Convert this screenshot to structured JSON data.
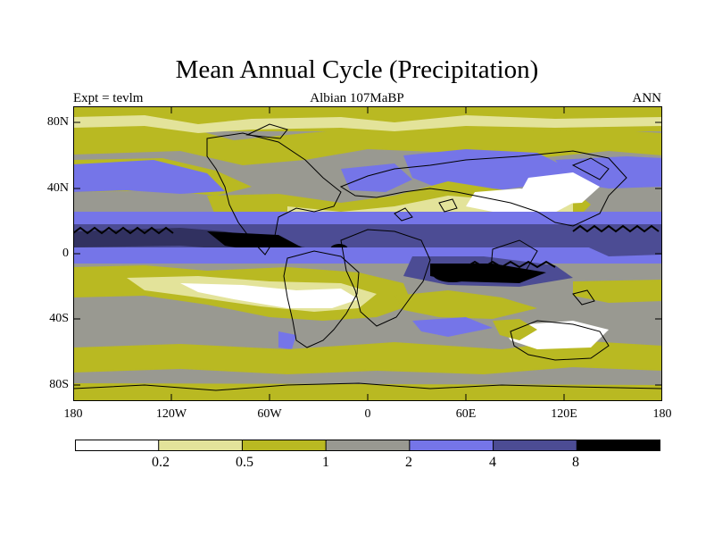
{
  "title": "Mean Annual Cycle (Precipitation)",
  "subtitle": {
    "left": "Expt = tevlm",
    "center": "Albian   107MaBP",
    "right": "ANN"
  },
  "map": {
    "latitude_labels": [
      "80N",
      "40N",
      "0",
      "40S",
      "80S"
    ],
    "longitude_labels": [
      "180",
      "120W",
      "60W",
      "0",
      "60E",
      "120E",
      "180"
    ]
  },
  "colorbar": {
    "labels": [
      "0.2",
      "0.5",
      "1",
      "2",
      "4",
      "8"
    ],
    "colors": [
      "#ffffff",
      "#e3e39a",
      "#b9b922",
      "#999991",
      "#7575e8",
      "#4c4c94",
      "#000000"
    ]
  }
}
